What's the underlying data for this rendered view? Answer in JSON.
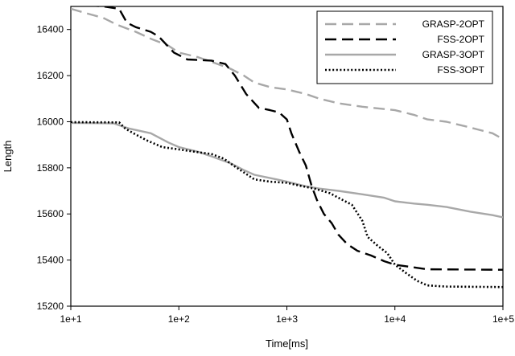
{
  "chart_data": {
    "type": "line",
    "title": "",
    "xlabel": "Time[ms]",
    "ylabel": "Length",
    "xscale": "log",
    "xlim": [
      10,
      100000
    ],
    "ylim": [
      15200,
      16500
    ],
    "xticks": [
      10,
      100,
      1000,
      10000,
      100000
    ],
    "xtick_labels": [
      "1e+1",
      "1e+2",
      "1e+3",
      "1e+4",
      "1e+5"
    ],
    "yticks": [
      15200,
      15400,
      15600,
      15800,
      16000,
      16200,
      16400
    ],
    "ytick_labels": [
      "15200",
      "15400",
      "15600",
      "15800",
      "16000",
      "16200",
      "16400"
    ],
    "grid": false,
    "legend_position": "top-right",
    "series": [
      {
        "name": "GRASP-2OPT",
        "color": "#a8a8a8",
        "style": "dashed",
        "points": [
          [
            10,
            16490
          ],
          [
            14,
            16470
          ],
          [
            20,
            16450
          ],
          [
            27,
            16420
          ],
          [
            40,
            16390
          ],
          [
            55,
            16360
          ],
          [
            80,
            16330
          ],
          [
            100,
            16300
          ],
          [
            150,
            16280
          ],
          [
            200,
            16260
          ],
          [
            300,
            16230
          ],
          [
            400,
            16200
          ],
          [
            500,
            16170
          ],
          [
            700,
            16150
          ],
          [
            1000,
            16140
          ],
          [
            1500,
            16120
          ],
          [
            2000,
            16100
          ],
          [
            3000,
            16080
          ],
          [
            5000,
            16065
          ],
          [
            8000,
            16055
          ],
          [
            10000,
            16050
          ],
          [
            15000,
            16030
          ],
          [
            20000,
            16010
          ],
          [
            30000,
            16000
          ],
          [
            45000,
            15980
          ],
          [
            60000,
            15965
          ],
          [
            80000,
            15950
          ],
          [
            100000,
            15925
          ]
        ]
      },
      {
        "name": "FSS-2OPT",
        "color": "#000000",
        "style": "dashed",
        "points": [
          [
            10,
            16510
          ],
          [
            20,
            16500
          ],
          [
            28,
            16490
          ],
          [
            33,
            16430
          ],
          [
            40,
            16410
          ],
          [
            55,
            16390
          ],
          [
            65,
            16370
          ],
          [
            90,
            16300
          ],
          [
            120,
            16270
          ],
          [
            200,
            16265
          ],
          [
            270,
            16250
          ],
          [
            330,
            16200
          ],
          [
            420,
            16120
          ],
          [
            550,
            16060
          ],
          [
            700,
            16050
          ],
          [
            850,
            16040
          ],
          [
            1000,
            16010
          ],
          [
            1100,
            15950
          ],
          [
            1300,
            15870
          ],
          [
            1500,
            15810
          ],
          [
            1700,
            15720
          ],
          [
            1900,
            15660
          ],
          [
            2200,
            15600
          ],
          [
            2600,
            15560
          ],
          [
            3000,
            15510
          ],
          [
            3600,
            15470
          ],
          [
            4500,
            15440
          ],
          [
            6000,
            15420
          ],
          [
            8000,
            15395
          ],
          [
            10000,
            15380
          ],
          [
            14000,
            15370
          ],
          [
            20000,
            15360
          ],
          [
            100000,
            15358
          ]
        ]
      },
      {
        "name": "GRASP-3OPT",
        "color": "#a8a8a8",
        "style": "solid",
        "points": [
          [
            10,
            15995
          ],
          [
            25,
            15993
          ],
          [
            30,
            15980
          ],
          [
            35,
            15970
          ],
          [
            55,
            15950
          ],
          [
            80,
            15910
          ],
          [
            100,
            15890
          ],
          [
            150,
            15870
          ],
          [
            200,
            15850
          ],
          [
            300,
            15820
          ],
          [
            400,
            15790
          ],
          [
            500,
            15770
          ],
          [
            800,
            15750
          ],
          [
            1000,
            15740
          ],
          [
            1500,
            15720
          ],
          [
            2000,
            15710
          ],
          [
            3000,
            15700
          ],
          [
            5000,
            15685
          ],
          [
            8000,
            15670
          ],
          [
            10000,
            15655
          ],
          [
            15000,
            15645
          ],
          [
            20000,
            15640
          ],
          [
            30000,
            15630
          ],
          [
            50000,
            15610
          ],
          [
            80000,
            15595
          ],
          [
            100000,
            15585
          ]
        ]
      },
      {
        "name": "FSS-3OPT",
        "color": "#000000",
        "style": "dotted",
        "points": [
          [
            10,
            15998
          ],
          [
            28,
            15997
          ],
          [
            32,
            15970
          ],
          [
            38,
            15950
          ],
          [
            50,
            15920
          ],
          [
            70,
            15890
          ],
          [
            100,
            15880
          ],
          [
            140,
            15870
          ],
          [
            200,
            15860
          ],
          [
            260,
            15840
          ],
          [
            320,
            15810
          ],
          [
            400,
            15780
          ],
          [
            500,
            15750
          ],
          [
            700,
            15740
          ],
          [
            1000,
            15735
          ],
          [
            1400,
            15720
          ],
          [
            1800,
            15710
          ],
          [
            2500,
            15690
          ],
          [
            3000,
            15670
          ],
          [
            4000,
            15640
          ],
          [
            5000,
            15570
          ],
          [
            5600,
            15500
          ],
          [
            7000,
            15460
          ],
          [
            8500,
            15430
          ],
          [
            10000,
            15380
          ],
          [
            13000,
            15340
          ],
          [
            16000,
            15310
          ],
          [
            20000,
            15290
          ],
          [
            30000,
            15285
          ],
          [
            100000,
            15283
          ]
        ]
      }
    ]
  }
}
